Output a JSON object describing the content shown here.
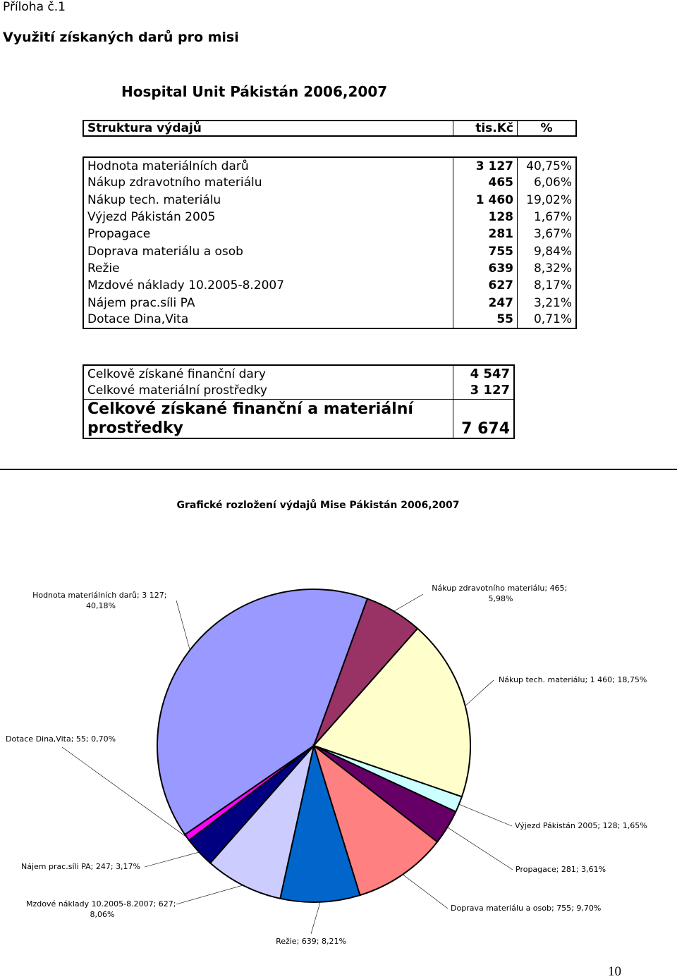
{
  "header": {
    "annex": "Příloha č.1",
    "title": "Využití získaných darů pro misi",
    "subtitle": "Hospital Unit Pákistán 2006,2007"
  },
  "table": {
    "columns": [
      "Struktura výdajů",
      "tis.Kč",
      "%"
    ],
    "rows": [
      [
        "Hodnota materiálních darů",
        "3 127",
        "40,75%"
      ],
      [
        "Nákup zdravotního materiálu",
        "465",
        "6,06%"
      ],
      [
        "Nákup tech. materiálu",
        "1 460",
        "19,02%"
      ],
      [
        "Výjezd Pákistán 2005",
        "128",
        "1,67%"
      ],
      [
        "Propagace",
        "281",
        "3,67%"
      ],
      [
        "Doprava materiálu a osob",
        "755",
        "9,84%"
      ],
      [
        "Režie",
        "639",
        "8,32%"
      ],
      [
        "Mzdové náklady 10.2005-8.2007",
        "627",
        "8,17%"
      ],
      [
        "Nájem prac.síli PA",
        "247",
        "3,21%"
      ],
      [
        "Dotace Dina,Vita",
        "55",
        "0,71%"
      ]
    ]
  },
  "totals": {
    "rows": [
      [
        "Celkově získané finanční dary",
        "4 547"
      ],
      [
        "Celkové materiální prostředky",
        "3 127"
      ],
      [
        "Celkové získané finanční a materiální prostředky",
        "7 674"
      ]
    ]
  },
  "chart_data": {
    "type": "pie",
    "title": "Grafické rozložení výdajů Mise Pákistán 2006,2007",
    "categories": [
      "Hodnota materiálních darů",
      "Nákup zdravotního materiálu",
      "Nákup tech. materiálu",
      "Výjezd Pákistán 2005",
      "Propagace",
      "Doprava materiálu a osob",
      "Režie",
      "Mzdové náklady 10.2005-8.2007",
      "Nájem prac.síli PA",
      "Dotace Dina,Vita"
    ],
    "values": [
      3127,
      465,
      1460,
      128,
      281,
      755,
      639,
      627,
      247,
      55
    ],
    "value_labels": [
      "3 127",
      "465",
      "1 460",
      "128",
      "281",
      "755",
      "639",
      "627",
      "247",
      "55"
    ],
    "percents": [
      40.18,
      5.98,
      18.75,
      1.65,
      3.61,
      9.7,
      8.21,
      8.06,
      3.17,
      0.7
    ],
    "percent_labels": [
      "40,18%",
      "5,98%",
      "18,75%",
      "1,65%",
      "3,61%",
      "9,70%",
      "8,21%",
      "8,06%",
      "3,17%",
      "0,70%"
    ],
    "label_separator": "; ",
    "colors": [
      "#9999ff",
      "#993366",
      "#ffffcc",
      "#ccffff",
      "#660066",
      "#ff8080",
      "#0066cc",
      "#ccccff",
      "#000080",
      "#ff00ff"
    ]
  },
  "page_number": "10"
}
